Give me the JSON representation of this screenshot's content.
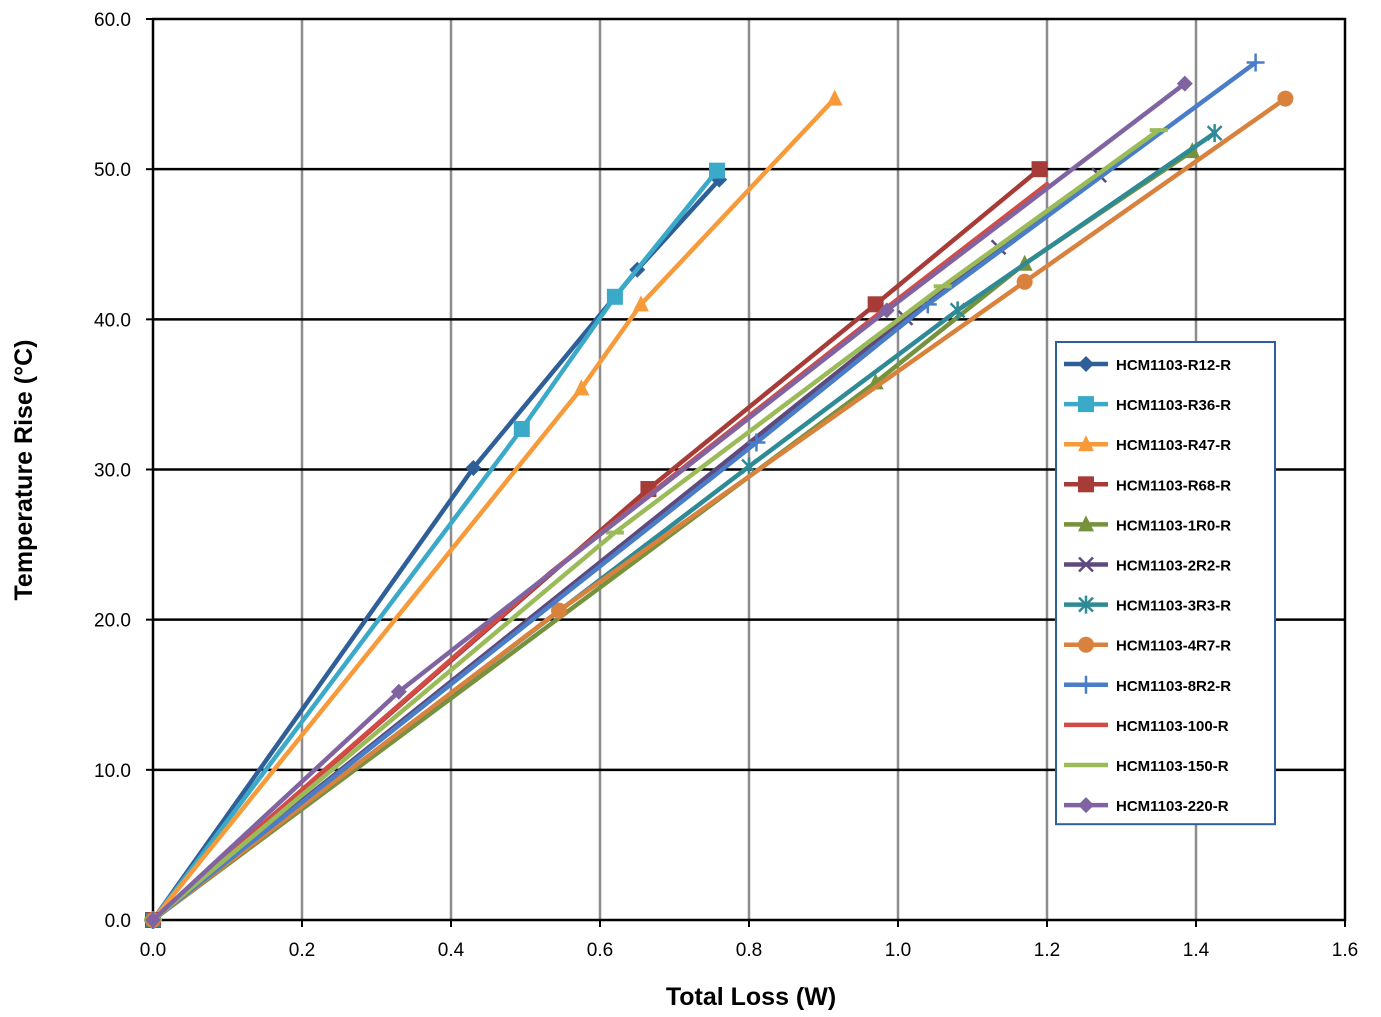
{
  "chart_data": {
    "type": "line",
    "title": "",
    "xlabel": "Total Loss (W)",
    "ylabel": "Temperature Rise (°C)",
    "xlim": [
      0,
      1.6
    ],
    "ylim": [
      0,
      60
    ],
    "xticks": [
      "0.0",
      "0.2",
      "0.4",
      "0.6",
      "0.8",
      "1.0",
      "1.2",
      "1.4",
      "1.6"
    ],
    "yticks": [
      "0.0",
      "10.0",
      "20.0",
      "30.0",
      "40.0",
      "50.0",
      "60.0"
    ],
    "grid": true,
    "legend_position": "right",
    "series": [
      {
        "name": "HCM1103-R12-R",
        "color": "#2F5F98",
        "marker": "diamond",
        "x": [
          0,
          0.43,
          0.65,
          0.76
        ],
        "y": [
          0,
          30.1,
          43.3,
          49.3
        ]
      },
      {
        "name": "HCM1103-R36-R",
        "color": "#3AAAC8",
        "marker": "square",
        "x": [
          0,
          0.495,
          0.62,
          0.757
        ],
        "y": [
          0,
          32.7,
          41.5,
          49.9
        ]
      },
      {
        "name": "HCM1103-R47-R",
        "color": "#F79A3A",
        "marker": "triangle",
        "x": [
          0,
          0.575,
          0.655,
          0.915
        ],
        "y": [
          0,
          35.4,
          41.0,
          54.7
        ]
      },
      {
        "name": "HCM1103-R68-R",
        "color": "#A63B37",
        "marker": "square",
        "x": [
          0,
          0.665,
          0.97,
          1.19
        ],
        "y": [
          0,
          28.7,
          41.0,
          50.0
        ]
      },
      {
        "name": "HCM1103-1R0-R",
        "color": "#76923C",
        "marker": "triangle",
        "x": [
          0,
          0.97,
          1.17,
          1.395
        ],
        "y": [
          0,
          35.8,
          43.7,
          51.2
        ]
      },
      {
        "name": "HCM1103-2R2-R",
        "color": "#5E4A7E",
        "marker": "x",
        "x": [
          0,
          1.01,
          1.135,
          1.27
        ],
        "y": [
          0,
          40.1,
          44.8,
          49.6
        ]
      },
      {
        "name": "HCM1103-3R3-R",
        "color": "#2E8A94",
        "marker": "asterisk",
        "x": [
          0,
          0.8,
          1.08,
          1.425
        ],
        "y": [
          0,
          30.2,
          40.6,
          52.4
        ]
      },
      {
        "name": "HCM1103-4R7-R",
        "color": "#D8823E",
        "marker": "circle",
        "x": [
          0,
          0.545,
          1.17,
          1.52
        ],
        "y": [
          0,
          20.6,
          42.5,
          54.7
        ]
      },
      {
        "name": "HCM1103-8R2-R",
        "color": "#4A7DC8",
        "marker": "plus",
        "x": [
          0,
          0.81,
          1.04,
          1.48
        ],
        "y": [
          0,
          31.8,
          41.0,
          57.1
        ]
      },
      {
        "name": "HCM1103-100-R",
        "color": "#D24B45",
        "marker": "none",
        "x": [
          0,
          0.535,
          0.975,
          1.2
        ],
        "y": [
          0,
          23.2,
          40.4,
          49.0
        ]
      },
      {
        "name": "HCM1103-150-R",
        "color": "#9BBB59",
        "marker": "dash",
        "x": [
          0,
          0.62,
          1.06,
          1.35
        ],
        "y": [
          0,
          25.8,
          42.2,
          52.6
        ]
      },
      {
        "name": "HCM1103-220-R",
        "color": "#8064A2",
        "marker": "diamond",
        "x": [
          0,
          0.33,
          0.985,
          1.385
        ],
        "y": [
          0,
          15.2,
          40.6,
          55.7
        ]
      }
    ]
  }
}
